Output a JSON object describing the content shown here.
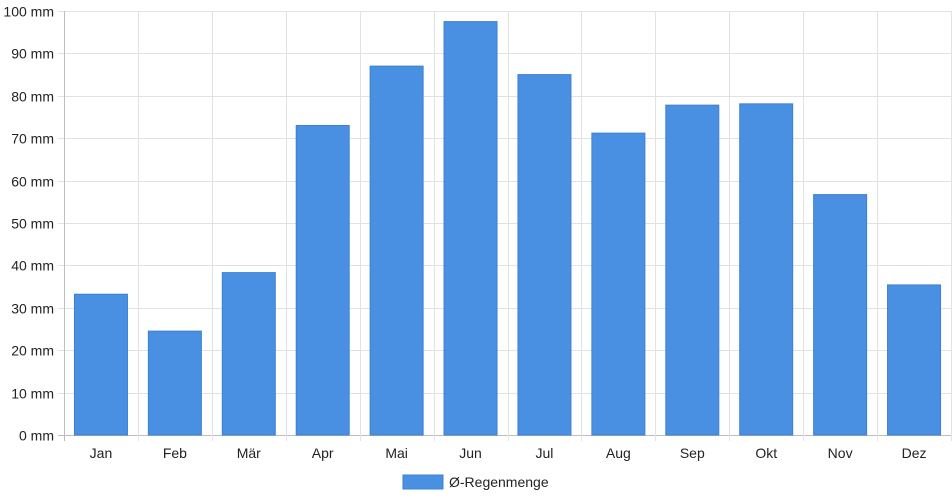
{
  "chart_data": {
    "type": "bar",
    "categories": [
      "Jan",
      "Feb",
      "Mär",
      "Apr",
      "Mai",
      "Jun",
      "Jul",
      "Aug",
      "Sep",
      "Okt",
      "Nov",
      "Dez"
    ],
    "series": [
      {
        "name": "Ø-Regenmenge",
        "values": [
          33.2,
          24.5,
          38.3,
          73.0,
          87.0,
          97.5,
          85.0,
          71.2,
          77.8,
          78.1,
          56.7,
          35.4
        ],
        "color": "#4a90e2"
      }
    ],
    "ylim": [
      0,
      100
    ],
    "ytick_step": 10,
    "y_unit": "mm",
    "grid": true,
    "legend_position": "bottom"
  }
}
